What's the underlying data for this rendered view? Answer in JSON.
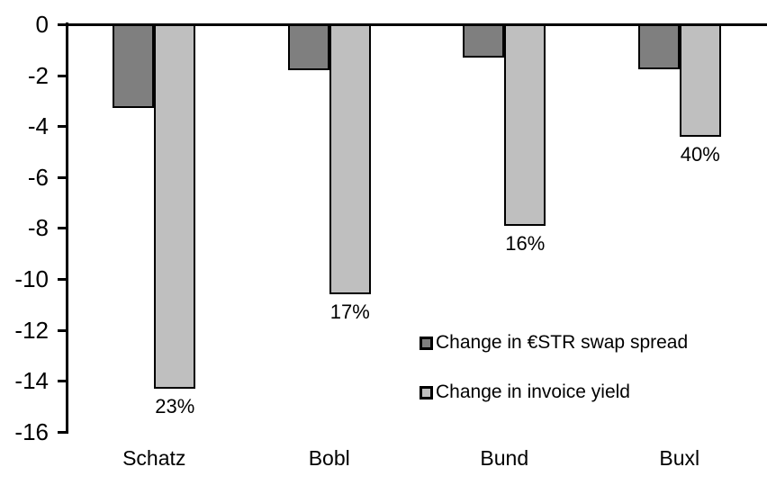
{
  "chart_data": {
    "type": "bar",
    "title": "",
    "xlabel": "",
    "ylabel": "",
    "orientation": "vertical",
    "categories": [
      "Schatz",
      "Bobl",
      "Bund",
      "Buxl"
    ],
    "series": [
      {
        "name": "Change in €STR swap spread",
        "color": "#7f7f7f",
        "values": [
          -3.3,
          -1.8,
          -1.3,
          -1.75
        ]
      },
      {
        "name": "Change in invoice yield",
        "color": "#bfbfbf",
        "values": [
          -14.3,
          -10.6,
          -7.9,
          -4.4
        ]
      }
    ],
    "bar_labels": {
      "attached_to_series": "Change in invoice yield",
      "values": [
        "23%",
        "17%",
        "16%",
        "40%"
      ]
    },
    "yticks": [
      0,
      -2,
      -4,
      -6,
      -8,
      -10,
      -12,
      -14,
      -16
    ],
    "ylim": [
      -16,
      0
    ],
    "grid": false,
    "legend_position": "inside-right",
    "bar_border_color": "#000000",
    "axis_color": "#000000"
  }
}
